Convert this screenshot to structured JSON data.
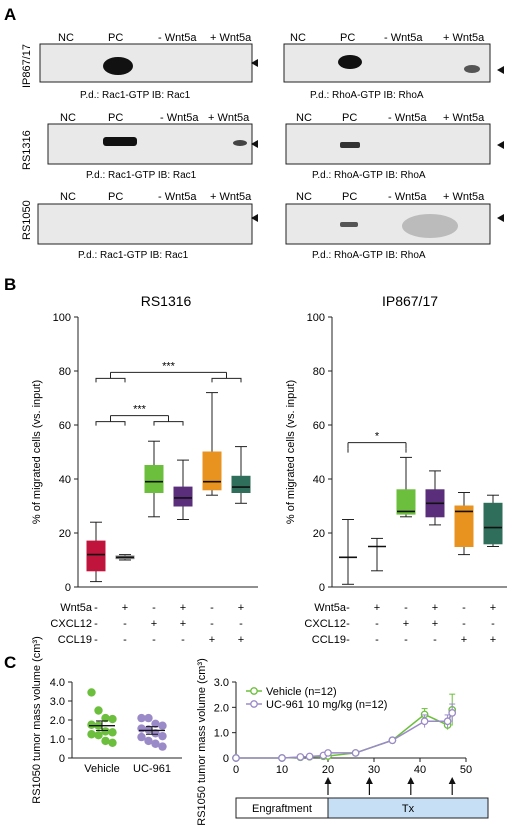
{
  "panel_labels": {
    "a": "A",
    "b": "B",
    "c": "C"
  },
  "panel_a": {
    "lane_labels": [
      "NC",
      "PC",
      "- Wnt5a",
      "+ Wnt5a"
    ],
    "rows": [
      {
        "name": "IP867/17",
        "left_caption": "P.d.: Rac1-GTP IB: Rac1",
        "right_caption": "P.d.: RhoA-GTP IB: RhoA"
      },
      {
        "name": "RS1316",
        "left_caption": "P.d.: Rac1-GTP IB: Rac1",
        "right_caption": "P.d.: RhoA-GTP IB: RhoA"
      },
      {
        "name": "RS1050",
        "left_caption": "P.d.: Rac1-GTP IB: Rac1",
        "right_caption": "P.d.: RhoA-GTP IB: RhoA"
      }
    ]
  },
  "panel_b": {
    "ylabel": "% of migrated cells (vs. input)",
    "conditions": [
      {
        "name": "Wnt5a",
        "signs": [
          "-",
          "+",
          "-",
          "+",
          "-",
          "+"
        ]
      },
      {
        "name": "CXCL12",
        "signs": [
          "-",
          "-",
          "+",
          "+",
          "-",
          "-"
        ]
      },
      {
        "name": "CCL19",
        "signs": [
          "-",
          "-",
          "-",
          "-",
          "+",
          "+"
        ]
      }
    ],
    "colors": [
      "#c0143c",
      "#888888",
      "#6cbf3c",
      "#5a2e7a",
      "#e8921f",
      "#2e6e5a"
    ]
  },
  "panel_c": {
    "left_ylabel": "RS1050 tumor mass volume (cm³)",
    "right_ylabel": "RS1050 tumor mass volume (cm³)",
    "phases": [
      "Engraftment",
      "Tx"
    ]
  },
  "chart_data": [
    {
      "type": "box",
      "title": "RS1316",
      "ylabel": "% of migrated cells (vs. input)",
      "ylim": [
        0,
        100
      ],
      "yticks": [
        0,
        20,
        40,
        60,
        80,
        100
      ],
      "boxes": [
        {
          "min": 2,
          "q1": 6,
          "median": 12,
          "q3": 17,
          "max": 24
        },
        {
          "min": 10,
          "q1": 10.5,
          "median": 11,
          "q3": 11.5,
          "max": 12
        },
        {
          "min": 26,
          "q1": 35,
          "median": 39,
          "q3": 45,
          "max": 54
        },
        {
          "min": 25,
          "q1": 30,
          "median": 33,
          "q3": 37,
          "max": 47
        },
        {
          "min": 34,
          "q1": 36,
          "median": 39,
          "q3": 50,
          "max": 72
        },
        {
          "min": 31,
          "q1": 35,
          "median": 37,
          "q3": 41,
          "max": 52
        }
      ],
      "significance": [
        {
          "label": "***",
          "groups": [
            [
              0,
              1
            ],
            [
              2,
              3
            ]
          ],
          "y": 62
        },
        {
          "label": "***",
          "groups": [
            [
              0,
              1
            ],
            [
              4,
              5
            ]
          ],
          "y": 78
        }
      ]
    },
    {
      "type": "box",
      "title": "IP867/17",
      "ylabel": "% of migrated cells (vs. input)",
      "ylim": [
        0,
        100
      ],
      "yticks": [
        0,
        20,
        40,
        60,
        80,
        100
      ],
      "boxes": [
        {
          "min": 1,
          "q1": 11,
          "median": 11,
          "q3": 11,
          "max": 25
        },
        {
          "min": 6,
          "q1": 15,
          "median": 15,
          "q3": 15,
          "max": 18
        },
        {
          "min": 26,
          "q1": 27,
          "median": 28,
          "q3": 36,
          "max": 48
        },
        {
          "min": 23,
          "q1": 26,
          "median": 31,
          "q3": 36,
          "max": 43
        },
        {
          "min": 12,
          "q1": 15,
          "median": 28,
          "q3": 30,
          "max": 35
        },
        {
          "min": 15,
          "q1": 16,
          "median": 22,
          "q3": 31,
          "max": 34
        }
      ],
      "significance": [
        {
          "label": "*",
          "groups": [
            [
              0
            ],
            [
              2
            ]
          ],
          "y": 52
        }
      ]
    },
    {
      "type": "scatter",
      "ylabel": "RS1050 tumor mass volume (cm³)",
      "ylim": [
        0,
        4
      ],
      "yticks": [
        "0",
        "1.0",
        "2.0",
        "3.0",
        "4.0"
      ],
      "categories": [
        "Vehicle",
        "UC-961"
      ],
      "colors": [
        "#6cbf3c",
        "#9b8ac8"
      ],
      "series": [
        {
          "values": [
            3.45,
            2.5,
            2.1,
            2.05,
            1.75,
            1.7,
            1.4,
            1.35,
            1.25,
            1.2,
            0.9,
            0.8
          ],
          "mean": 1.7,
          "sem_low": 1.45,
          "sem_high": 1.95
        },
        {
          "values": [
            2.1,
            2.1,
            1.8,
            1.7,
            1.55,
            1.5,
            1.3,
            1.15,
            1.1,
            0.9,
            0.75,
            0.6
          ],
          "mean": 1.45,
          "sem_low": 1.25,
          "sem_high": 1.65
        }
      ]
    },
    {
      "type": "line",
      "ylabel": "RS1050 tumor mass volume (cm³)",
      "xlim": [
        0,
        50
      ],
      "ylim": [
        0,
        3
      ],
      "xticks": [
        0,
        10,
        20,
        30,
        40,
        50
      ],
      "yticks": [
        "0",
        "1.0",
        "2.0",
        "3.0"
      ],
      "treatment_arrows": [
        20,
        29,
        38,
        47
      ],
      "series": [
        {
          "name": "Vehicle (n=12)",
          "color": "#6cbf3c",
          "points": [
            [
              0,
              0
            ],
            [
              10,
              0
            ],
            [
              14,
              0.03
            ],
            [
              16,
              0.05
            ],
            [
              19,
              0.07
            ],
            [
              20,
              0.08
            ],
            [
              26,
              0.2
            ],
            [
              34,
              0.7
            ],
            [
              41,
              1.72
            ],
            [
              46,
              1.3
            ],
            [
              47,
              1.9
            ]
          ],
          "err": [
            0,
            0,
            0,
            0,
            0.02,
            0.02,
            0.03,
            0.06,
            0.23,
            0.18,
            0.62
          ]
        },
        {
          "name": "UC-961 10 mg/kg (n=12)",
          "color": "#9b8ac8",
          "points": [
            [
              0,
              0
            ],
            [
              10,
              0
            ],
            [
              14,
              0.04
            ],
            [
              16,
              0.06
            ],
            [
              19,
              0.1
            ],
            [
              20,
              0.2
            ],
            [
              26,
              0.2
            ],
            [
              34,
              0.7
            ],
            [
              41,
              1.45
            ],
            [
              46,
              1.45
            ],
            [
              47,
              1.78
            ]
          ],
          "err": [
            0,
            0,
            0,
            0,
            0.02,
            0.03,
            0.03,
            0.05,
            0.25,
            0.25,
            0.35
          ]
        }
      ]
    }
  ]
}
